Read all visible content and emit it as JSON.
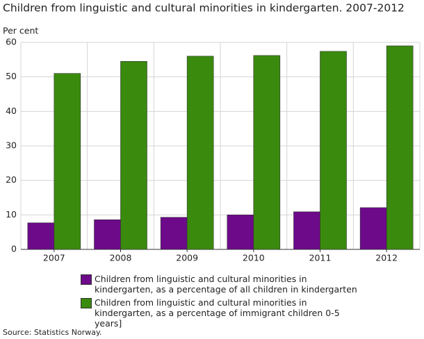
{
  "chart_data": {
    "type": "bar",
    "title": "Children from linguistic and cultural minorities in kindergarten. 2007-2012",
    "y_label": "Per cent",
    "categories": [
      "2007",
      "2008",
      "2009",
      "2010",
      "2011",
      "2012"
    ],
    "series": [
      {
        "name": "Children from linguistic and cultural minorities in kindergarten, as a percentage of all children in kindergarten",
        "color": "#6c0a8a",
        "values": [
          7.7,
          8.6,
          9.3,
          10.0,
          10.9,
          12.1
        ]
      },
      {
        "name": "Children from linguistic and cultural minorities in kindergarten, as a percentage of immigrant children 0-5 years]",
        "color": "#3a8a0e",
        "values": [
          51.0,
          54.5,
          56.0,
          56.2,
          57.4,
          59.0
        ]
      }
    ],
    "ylim": [
      0,
      60
    ],
    "yticks": [
      0,
      10,
      20,
      30,
      40,
      50,
      60
    ],
    "grid": true,
    "source": "Source: Statistics Norway."
  }
}
